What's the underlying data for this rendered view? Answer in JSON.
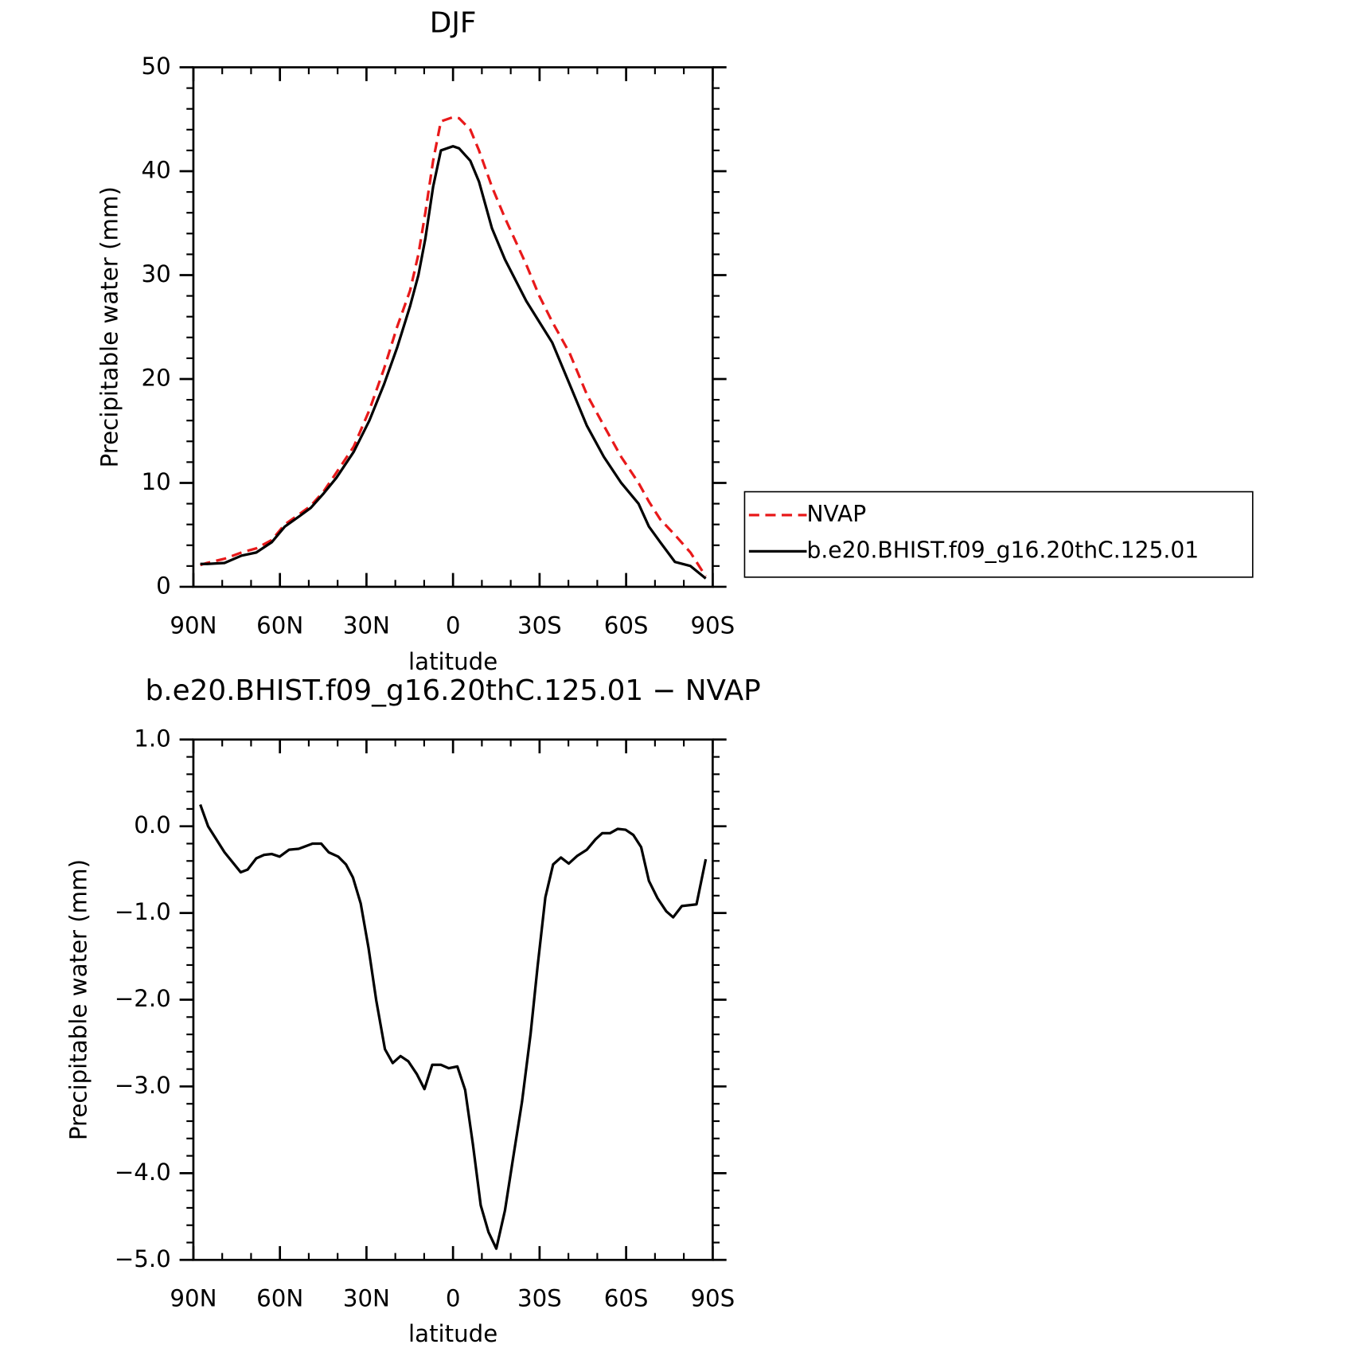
{
  "chart_data": [
    {
      "type": "line",
      "title": "DJF",
      "xlabel": "latitude",
      "ylabel": "Precipitable water (mm)",
      "xlim": [
        90,
        -90
      ],
      "ylim": [
        0,
        50
      ],
      "xticks": [
        {
          "value": 90,
          "label": "90N"
        },
        {
          "value": 60,
          "label": "60N"
        },
        {
          "value": 30,
          "label": "30N"
        },
        0,
        {
          "value": -30,
          "label": "30S"
        },
        {
          "value": -60,
          "label": "60S"
        },
        {
          "value": -90,
          "label": "90S"
        }
      ],
      "yticks": [
        0,
        10,
        20,
        30,
        40,
        50
      ],
      "legend": "outside right",
      "x": [
        87.6,
        85.2,
        79.2,
        73.3,
        68.2,
        62.8,
        58.3,
        53.2,
        49.3,
        44.8,
        40.4,
        34.4,
        29.0,
        23.9,
        19.4,
        14.9,
        12.0,
        9.6,
        6.9,
        4.2,
        0,
        -2.1,
        -6.0,
        -9.0,
        -13.5,
        -18.0,
        -25.4,
        -29.9,
        -34.4,
        -40.4,
        -46.4,
        -52.3,
        -58.3,
        -64.3,
        -67.9,
        -71.8,
        -76.9,
        -82.3,
        -87.6
      ],
      "series": [
        {
          "name": "NVAP",
          "color": "#e8191a",
          "linestyle": "dashed",
          "values": [
            2.1,
            2.3,
            2.7,
            3.3,
            3.7,
            4.5,
            6,
            7,
            7.8,
            9.2,
            11,
            13.5,
            17,
            21,
            25,
            28.5,
            32,
            36,
            41,
            44.8,
            45.2,
            45.1,
            44,
            42,
            38.5,
            35.5,
            31,
            28,
            25.5,
            22.5,
            18.5,
            15.5,
            12.5,
            10,
            8.2,
            6.5,
            5,
            3.3,
            1.0
          ]
        },
        {
          "name": "b.e20.BHIST.f09_g16.20thC.125.01",
          "color": "#000000",
          "linestyle": "solid",
          "values": [
            2.2,
            2.2,
            2.3,
            3.0,
            3.3,
            4.3,
            5.8,
            6.8,
            7.6,
            9.0,
            10.5,
            13,
            16,
            19.5,
            23,
            27,
            30,
            33.5,
            38.5,
            42,
            42.4,
            42.2,
            41,
            39,
            34.5,
            31.5,
            27.5,
            25.5,
            23.5,
            19.5,
            15.5,
            12.5,
            10,
            8,
            5.8,
            4.3,
            2.4,
            2,
            0.8
          ]
        }
      ]
    },
    {
      "type": "line",
      "title": "b.e20.BHIST.f09_g16.20thC.125.01 − NVAP",
      "xlabel": "latitude",
      "ylabel": "Precipitable water (mm)",
      "xlim": [
        90,
        -90
      ],
      "ylim": [
        -5,
        1
      ],
      "xticks": [
        {
          "value": 90,
          "label": "90N"
        },
        {
          "value": 60,
          "label": "60N"
        },
        {
          "value": 30,
          "label": "30N"
        },
        0,
        {
          "value": -30,
          "label": "30S"
        },
        {
          "value": -60,
          "label": "60S"
        },
        {
          "value": -90,
          "label": "90S"
        }
      ],
      "yticks": [
        {
          "value": 1,
          "label": "1.0"
        },
        {
          "value": 0,
          "label": "0.0"
        },
        {
          "value": -1,
          "label": "−1.0"
        },
        {
          "value": -2,
          "label": "−2.0"
        },
        {
          "value": -3,
          "label": "−3.0"
        },
        {
          "value": -4,
          "label": "−4.0"
        },
        {
          "value": -5,
          "label": "−5.0"
        }
      ],
      "x": [
        87.6,
        84.9,
        79.2,
        73.6,
        71.2,
        68.2,
        65.5,
        62.8,
        60.1,
        56.8,
        53.5,
        48.7,
        45.7,
        43.1,
        39.8,
        37.1,
        34.7,
        32.0,
        29.3,
        26.6,
        23.6,
        20.9,
        18.2,
        15.5,
        12.5,
        9.9,
        7.2,
        4.2,
        1.5,
        -1.5,
        -4.2,
        -6.9,
        -9.6,
        -12.3,
        -15.0,
        -18.0,
        -20.9,
        -23.9,
        -26.9,
        -29.3,
        -32.0,
        -34.7,
        -37.4,
        -40.1,
        -43.1,
        -46.4,
        -49.4,
        -51.7,
        -54.4,
        -57.1,
        -59.8,
        -62.5,
        -65.2,
        -67.9,
        -70.9,
        -73.9,
        -76.3,
        -79.3,
        -84.4,
        -87.6
      ],
      "series": [
        {
          "color": "#000000",
          "linestyle": "solid",
          "values": [
            0.25,
            0,
            -0.3,
            -0.53,
            -0.5,
            -0.37,
            -0.33,
            -0.32,
            -0.35,
            -0.27,
            -0.26,
            -0.2,
            -0.2,
            -0.3,
            -0.35,
            -0.44,
            -0.59,
            -0.89,
            -1.4,
            -2.01,
            -2.57,
            -2.73,
            -2.65,
            -2.71,
            -2.86,
            -3.03,
            -2.75,
            -2.75,
            -2.79,
            -2.77,
            -3.04,
            -3.67,
            -4.37,
            -4.68,
            -4.87,
            -4.43,
            -3.81,
            -3.18,
            -2.39,
            -1.62,
            -0.82,
            -0.44,
            -0.36,
            -0.43,
            -0.34,
            -0.27,
            -0.15,
            -0.08,
            -0.08,
            -0.03,
            -0.04,
            -0.1,
            -0.24,
            -0.63,
            -0.83,
            -0.98,
            -1.05,
            -0.92,
            -0.9,
            -0.38
          ]
        }
      ]
    }
  ]
}
